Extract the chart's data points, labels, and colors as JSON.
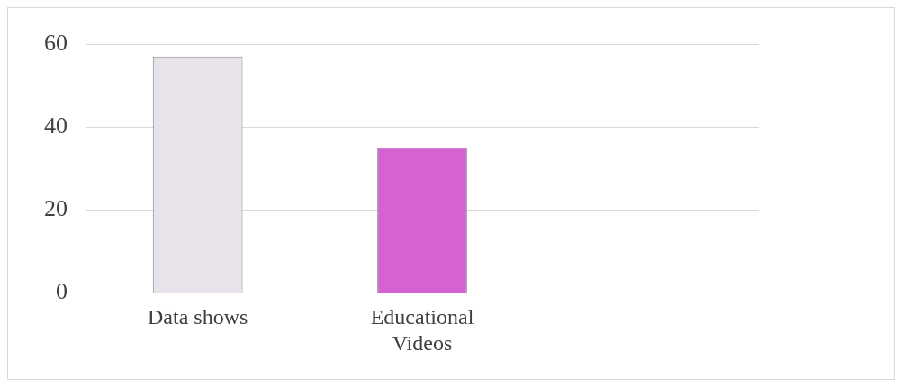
{
  "chart_data": {
    "type": "bar",
    "categories": [
      "Data shows",
      "Educational Videos",
      null
    ],
    "values": [
      57,
      35,
      null
    ],
    "colors": [
      "#e8e2ea",
      "#d462d0",
      "#d462d0"
    ],
    "ylim": [
      0,
      60
    ],
    "yticks": [
      0,
      20,
      40,
      60
    ],
    "grid": "y",
    "legend": false
  }
}
